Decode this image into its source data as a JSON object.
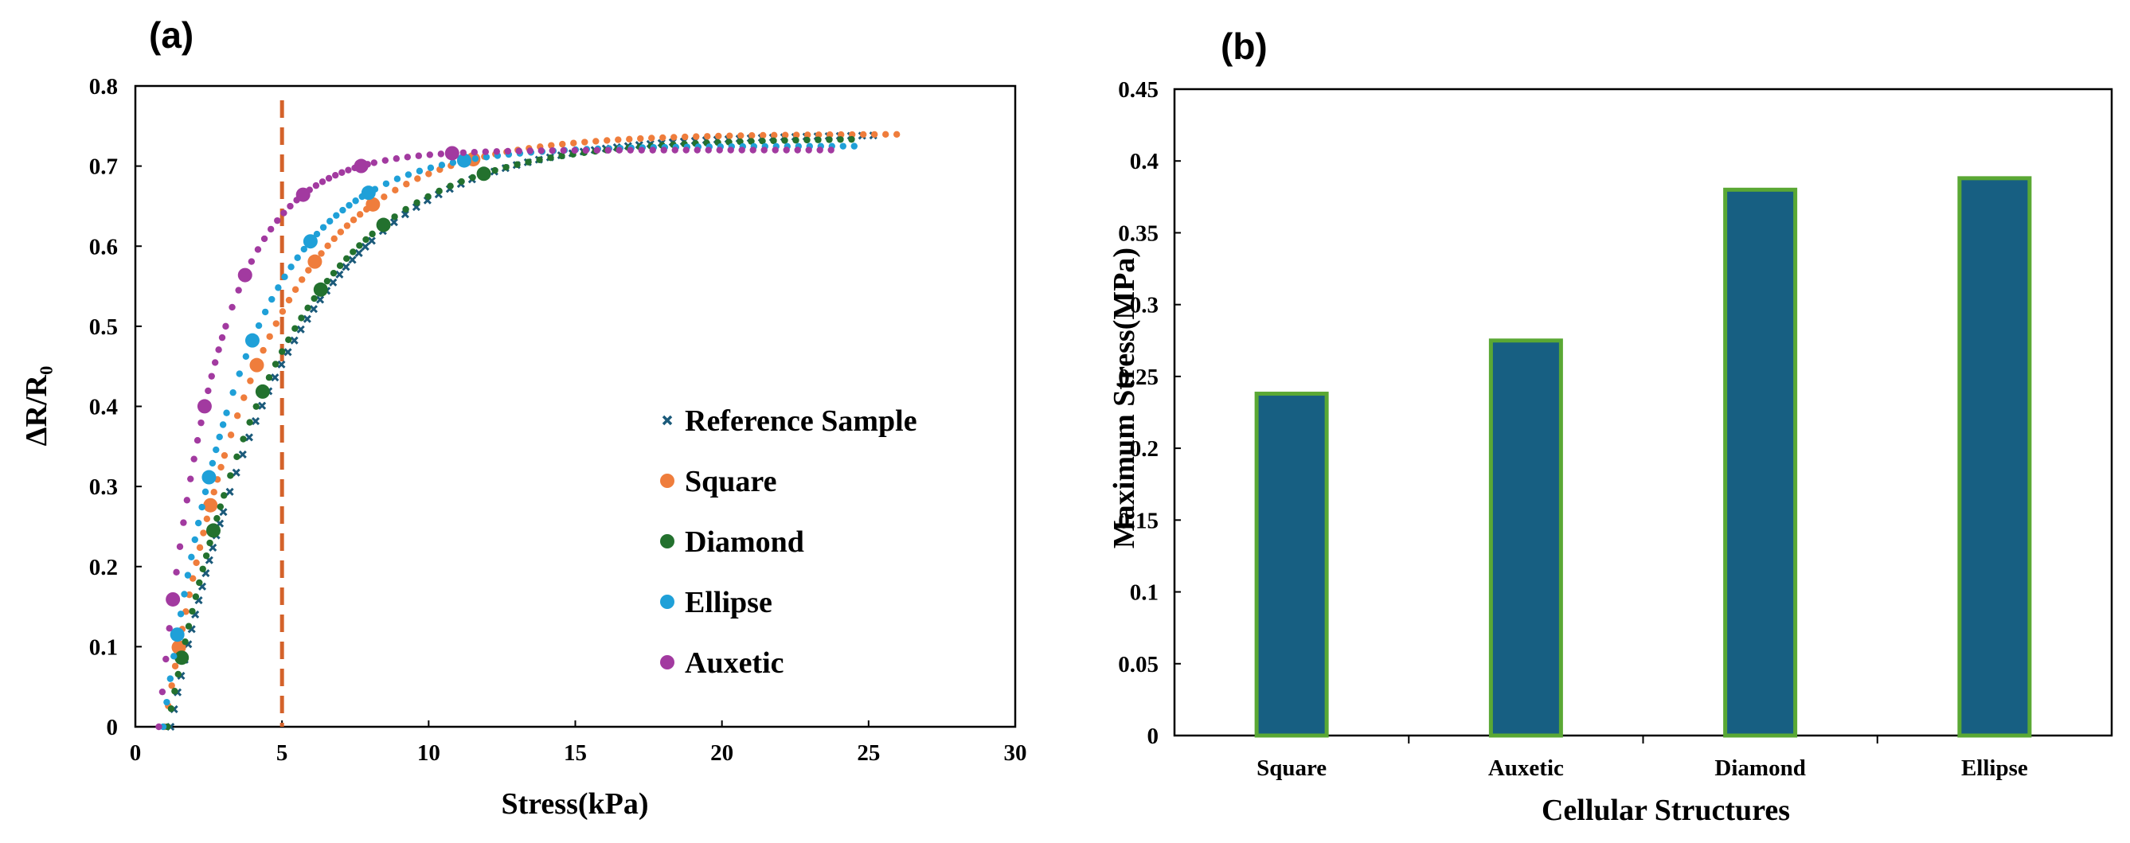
{
  "chart_data": [
    {
      "panel_label": "(a)",
      "type": "scatter",
      "xlabel": "Stress(kPa)",
      "ylabel": "ΔR/R₀",
      "xlim": [
        0,
        30
      ],
      "ylim": [
        0,
        0.8
      ],
      "xticks": [
        "0",
        "5",
        "10",
        "15",
        "20",
        "25",
        "30"
      ],
      "yticks": [
        "0",
        "0.1",
        "0.2",
        "0.3",
        "0.4",
        "0.5",
        "0.6",
        "0.7",
        "0.8"
      ],
      "reference_line": {
        "x": 5,
        "color": "#d4622a",
        "style": "dashed"
      },
      "legend_position": "center-right",
      "series": [
        {
          "name": "Reference Sample",
          "color": "#1b5a7a",
          "marker": "x",
          "x0": 1.2,
          "k": 0.25,
          "max": 0.74,
          "x_end": 25.5
        },
        {
          "name": "Square",
          "color": "#ef7d3c",
          "marker": "dot",
          "x0": 1.0,
          "k": 0.3,
          "max": 0.74,
          "x_end": 26.2
        },
        {
          "name": "Diamond",
          "color": "#23712e",
          "marker": "dot",
          "x0": 1.1,
          "k": 0.26,
          "max": 0.735,
          "x_end": 24.5
        },
        {
          "name": "Ellipse",
          "color": "#1fa0d8",
          "marker": "dot",
          "x0": 0.95,
          "k": 0.36,
          "max": 0.725,
          "x_end": 24.8
        },
        {
          "name": "Auxetic",
          "color": "#a23aa0",
          "marker": "dot",
          "x0": 0.8,
          "k": 0.52,
          "max": 0.72,
          "x_end": 24.0
        }
      ]
    },
    {
      "panel_label": "(b)",
      "type": "bar",
      "categories": [
        "Square",
        "Auxetic",
        "Diamond",
        "Ellipse"
      ],
      "values": [
        0.238,
        0.275,
        0.38,
        0.388
      ],
      "xlabel": "Cellular Structures",
      "ylabel": "Maximum Stress(MPa)",
      "ylim": [
        0,
        0.45
      ],
      "yticks": [
        "0",
        "0.05",
        "0.1",
        "0.15",
        "0.2",
        "0.25",
        "0.3",
        "0.35",
        "0.4",
        "0.45"
      ],
      "bar_color": "#175f82",
      "bar_edge": "#5aa834"
    }
  ]
}
